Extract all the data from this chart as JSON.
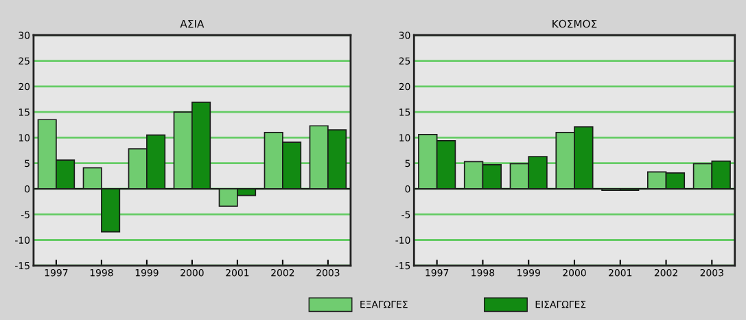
{
  "chart_data": [
    {
      "type": "bar",
      "title": "ΑΣΙΑ",
      "categories": [
        "1997",
        "1998",
        "1999",
        "2000",
        "2001",
        "2002",
        "2003"
      ],
      "series": [
        {
          "name": "ΕΞΑΓΩΓΕΣ",
          "color": "#70cc70",
          "values": [
            13.5,
            4.1,
            7.8,
            15.0,
            -3.4,
            11.0,
            12.3
          ]
        },
        {
          "name": "ΕΙΣΑΓΩΓΕΣ",
          "color": "#128a12",
          "values": [
            5.6,
            -8.4,
            10.5,
            16.9,
            -1.3,
            9.1,
            11.5
          ]
        }
      ],
      "ylim": [
        -15,
        30
      ],
      "yticks": [
        -15,
        -10,
        -5,
        0,
        5,
        10,
        15,
        20,
        25,
        30
      ],
      "grid": "y",
      "legend": "bottom"
    },
    {
      "type": "bar",
      "title": "ΚΟΣΜΟΣ",
      "categories": [
        "1997",
        "1998",
        "1999",
        "2000",
        "2001",
        "2002",
        "2003"
      ],
      "series": [
        {
          "color": "#70cc70",
          "values": [
            10.6,
            5.3,
            4.9,
            11.0,
            -0.3,
            3.3,
            4.9
          ]
        },
        {
          "color": "#128a12",
          "values": [
            9.4,
            4.7,
            6.3,
            12.1,
            -0.3,
            3.1,
            5.4
          ]
        }
      ],
      "ylim": [
        -15,
        30
      ],
      "yticks": [
        -15,
        -10,
        -5,
        0,
        5,
        10,
        15,
        20,
        25,
        30
      ],
      "grid": "y"
    }
  ]
}
